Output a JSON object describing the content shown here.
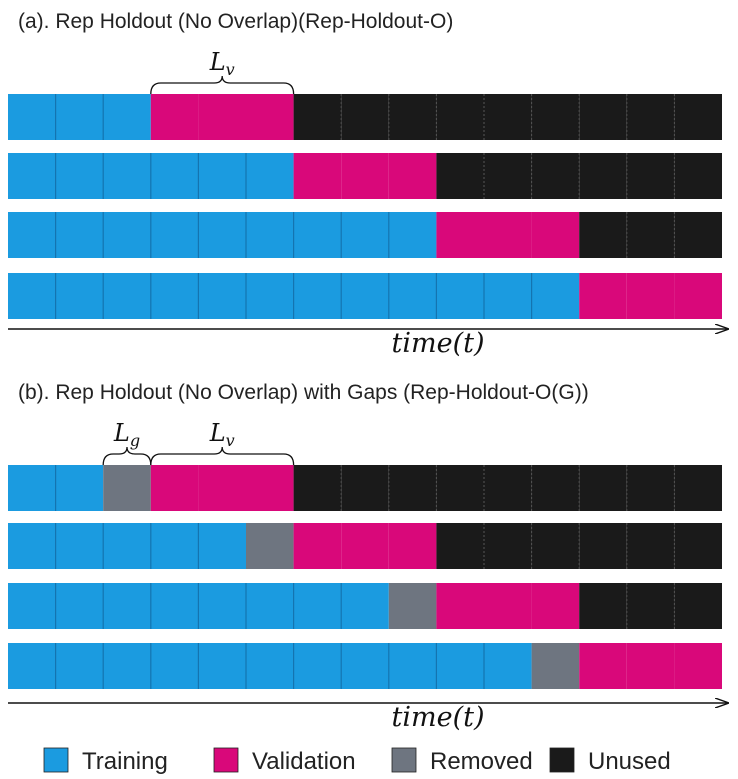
{
  "panels": [
    {
      "title": "(a). Rep Holdout (No Overlap)(Rep-Holdout-O)",
      "rows": [
        [
          "T",
          "T",
          "T",
          "V",
          "V",
          "V",
          "U",
          "U",
          "U",
          "U",
          "U",
          "U",
          "U",
          "U",
          "U"
        ],
        [
          "T",
          "T",
          "T",
          "T",
          "T",
          "T",
          "V",
          "V",
          "V",
          "U",
          "U",
          "U",
          "U",
          "U",
          "U"
        ],
        [
          "T",
          "T",
          "T",
          "T",
          "T",
          "T",
          "T",
          "T",
          "T",
          "V",
          "V",
          "V",
          "U",
          "U",
          "U"
        ],
        [
          "T",
          "T",
          "T",
          "T",
          "T",
          "T",
          "T",
          "T",
          "T",
          "T",
          "T",
          "T",
          "V",
          "V",
          "V"
        ]
      ],
      "braces": [
        {
          "symbol": "L",
          "subscript": "v"
        }
      ],
      "axis_label": "time(t)"
    },
    {
      "title": "(b). Rep Holdout (No Overlap) with Gaps (Rep-Holdout-O(G))",
      "rows": [
        [
          "T",
          "T",
          "R",
          "V",
          "V",
          "V",
          "U",
          "U",
          "U",
          "U",
          "U",
          "U",
          "U",
          "U",
          "U"
        ],
        [
          "T",
          "T",
          "T",
          "T",
          "T",
          "R",
          "V",
          "V",
          "V",
          "U",
          "U",
          "U",
          "U",
          "U",
          "U"
        ],
        [
          "T",
          "T",
          "T",
          "T",
          "T",
          "T",
          "T",
          "T",
          "R",
          "V",
          "V",
          "V",
          "U",
          "U",
          "U"
        ],
        [
          "T",
          "T",
          "T",
          "T",
          "T",
          "T",
          "T",
          "T",
          "T",
          "T",
          "T",
          "R",
          "V",
          "V",
          "V"
        ]
      ],
      "braces": [
        {
          "symbol": "L",
          "subscript": "g"
        },
        {
          "symbol": "L",
          "subscript": "v"
        }
      ],
      "axis_label": "time(t)"
    }
  ],
  "legend": [
    {
      "key": "T",
      "label": "Training",
      "color": "#1b9be0"
    },
    {
      "key": "V",
      "label": "Validation",
      "color": "#d9087a"
    },
    {
      "key": "R",
      "label": "Removed",
      "color": "#6e7580"
    },
    {
      "key": "U",
      "label": "Unused",
      "color": "#1a1a1a"
    }
  ]
}
